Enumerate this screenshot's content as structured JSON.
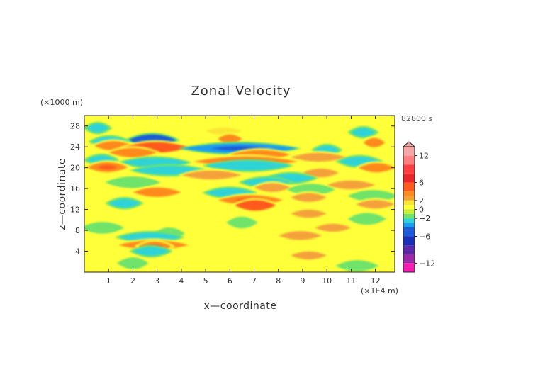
{
  "chart_data": {
    "type": "heatmap",
    "title": "Zonal Velocity",
    "xlabel": "x—coordinate",
    "ylabel": "z—coordinate",
    "x_unit": "(×1E4 m)",
    "y_unit": "(×1000 m)",
    "time_label": "82800 s",
    "xlim": [
      0,
      12.8
    ],
    "ylim": [
      0,
      30
    ],
    "x_ticks": [
      1,
      2,
      3,
      4,
      5,
      6,
      7,
      8,
      9,
      10,
      11,
      12
    ],
    "y_ticks": [
      4,
      8,
      12,
      16,
      20,
      24,
      28
    ],
    "colorbar": {
      "range": [
        -14,
        14
      ],
      "tick_values": [
        12,
        6,
        2,
        0,
        -2,
        -6,
        -12
      ],
      "tick_labels": [
        "12",
        "6",
        "2",
        "0",
        "−2",
        "−6",
        "−12"
      ],
      "levels": [
        {
          "min": 12,
          "max": 14,
          "color": "#f4a6a6"
        },
        {
          "min": 10,
          "max": 12,
          "color": "#ff7f7f"
        },
        {
          "min": 8,
          "max": 10,
          "color": "#ff4040"
        },
        {
          "min": 6,
          "max": 8,
          "color": "#e8262b"
        },
        {
          "min": 4,
          "max": 6,
          "color": "#ff5a1f"
        },
        {
          "min": 3,
          "max": 4,
          "color": "#ff8a1f"
        },
        {
          "min": 2,
          "max": 3,
          "color": "#f4a13a"
        },
        {
          "min": 1,
          "max": 2,
          "color": "#f9e633"
        },
        {
          "min": 0,
          "max": 1,
          "color": "#ffff3a"
        },
        {
          "min": -1,
          "max": 0,
          "color": "#c8f03a"
        },
        {
          "min": -2,
          "max": -1,
          "color": "#6fe36a"
        },
        {
          "min": -3,
          "max": -2,
          "color": "#2ed3d8"
        },
        {
          "min": -4,
          "max": -3,
          "color": "#1e9cf0"
        },
        {
          "min": -6,
          "max": -4,
          "color": "#1f5bd6"
        },
        {
          "min": -8,
          "max": -6,
          "color": "#1a2fb8"
        },
        {
          "min": -10,
          "max": -8,
          "color": "#5a2aa8"
        },
        {
          "min": -12,
          "max": -10,
          "color": "#9a2aa8"
        },
        {
          "min": -14,
          "max": -12,
          "color": "#f21fb0"
        }
      ]
    },
    "field_bands": [
      {
        "z": 27.6,
        "value": -2.5,
        "x_from": 0.1,
        "x_to": 1.0
      },
      {
        "z": 27.0,
        "value": 1.5,
        "x_from": 5.0,
        "x_to": 6.5
      },
      {
        "z": 26.8,
        "value": -2.5,
        "x_from": 11.0,
        "x_to": 12.0
      },
      {
        "z": 25.5,
        "value": 3.0,
        "x_from": 5.5,
        "x_to": 6.5
      },
      {
        "z": 25.3,
        "value": -4.5,
        "x_from": 1.8,
        "x_to": 3.8
      },
      {
        "z": 25.0,
        "value": -3.0,
        "x_from": 0.3,
        "x_to": 1.8
      },
      {
        "z": 24.8,
        "value": 3.0,
        "x_from": 11.5,
        "x_to": 12.4
      },
      {
        "z": 24.2,
        "value": 3.0,
        "x_from": 0.4,
        "x_to": 2.0
      },
      {
        "z": 23.9,
        "value": 4.0,
        "x_from": 1.6,
        "x_to": 4.3
      },
      {
        "z": 23.7,
        "value": -3.5,
        "x_from": 4.0,
        "x_to": 8.8
      },
      {
        "z": 23.4,
        "value": -2.5,
        "x_from": 9.5,
        "x_to": 10.5
      },
      {
        "z": 22.9,
        "value": 3.0,
        "x_from": 1.0,
        "x_to": 3.0
      },
      {
        "z": 22.5,
        "value": 3.0,
        "x_from": 6.0,
        "x_to": 8.5
      },
      {
        "z": 22.0,
        "value": 2.5,
        "x_from": 8.5,
        "x_to": 10.8
      },
      {
        "z": 21.5,
        "value": -2.5,
        "x_from": 0.1,
        "x_to": 1.3
      },
      {
        "z": 21.2,
        "value": 3.5,
        "x_from": 4.5,
        "x_to": 8.8
      },
      {
        "z": 21.0,
        "value": -2.5,
        "x_from": 1.5,
        "x_to": 4.3
      },
      {
        "z": 21.2,
        "value": -3.0,
        "x_from": 10.5,
        "x_to": 12.2
      },
      {
        "z": 20.4,
        "value": -3.0,
        "x_from": 5.0,
        "x_to": 8.5
      },
      {
        "z": 20.1,
        "value": 3.5,
        "x_from": 0.1,
        "x_to": 1.8
      },
      {
        "z": 20.0,
        "value": 3.0,
        "x_from": 11.3,
        "x_to": 12.8
      },
      {
        "z": 19.5,
        "value": -2.5,
        "x_from": 2.0,
        "x_to": 5.0
      },
      {
        "z": 19.0,
        "value": 2.5,
        "x_from": 9.0,
        "x_to": 10.5
      },
      {
        "z": 18.6,
        "value": 2.5,
        "x_from": 4.0,
        "x_to": 6.5
      },
      {
        "z": 18.0,
        "value": -2.5,
        "x_from": 7.5,
        "x_to": 9.5
      },
      {
        "z": 17.2,
        "value": -2.0,
        "x_from": 1.0,
        "x_to": 3.0
      },
      {
        "z": 17.2,
        "value": -2.5,
        "x_from": 6.5,
        "x_to": 8.5
      },
      {
        "z": 16.7,
        "value": 2.5,
        "x_from": 10.0,
        "x_to": 12.0
      },
      {
        "z": 16.2,
        "value": 2.5,
        "x_from": 7.0,
        "x_to": 8.5
      },
      {
        "z": 15.8,
        "value": -2.0,
        "x_from": 8.5,
        "x_to": 10.2
      },
      {
        "z": 15.3,
        "value": 3.0,
        "x_from": 2.0,
        "x_to": 4.0
      },
      {
        "z": 15.2,
        "value": -2.5,
        "x_from": 5.0,
        "x_to": 7.0
      },
      {
        "z": 14.6,
        "value": -2.0,
        "x_from": 11.0,
        "x_to": 12.8
      },
      {
        "z": 14.3,
        "value": 2.5,
        "x_from": 8.5,
        "x_to": 10.0
      },
      {
        "z": 13.8,
        "value": 3.5,
        "x_from": 5.5,
        "x_to": 8.2
      },
      {
        "z": 13.2,
        "value": -2.5,
        "x_from": 1.0,
        "x_to": 2.3
      },
      {
        "z": 13.0,
        "value": 2.5,
        "x_from": 11.2,
        "x_to": 12.8
      },
      {
        "z": 12.8,
        "value": 4.0,
        "x_from": 6.2,
        "x_to": 7.9
      },
      {
        "z": 11.2,
        "value": 2.0,
        "x_from": 8.5,
        "x_to": 10.0
      },
      {
        "z": 10.2,
        "value": -2.0,
        "x_from": 11.0,
        "x_to": 12.3
      },
      {
        "z": 9.5,
        "value": -2.0,
        "x_from": 6.0,
        "x_to": 7.0
      },
      {
        "z": 8.5,
        "value": 2.0,
        "x_from": 9.5,
        "x_to": 11.0
      },
      {
        "z": 8.5,
        "value": -2.0,
        "x_from": 0.0,
        "x_to": 1.5
      },
      {
        "z": 7.4,
        "value": -2.0,
        "x_from": 3.0,
        "x_to": 4.0
      },
      {
        "z": 7.0,
        "value": 2.5,
        "x_from": 8.0,
        "x_to": 9.8
      },
      {
        "z": 6.7,
        "value": -2.5,
        "x_from": 1.4,
        "x_to": 4.0
      },
      {
        "z": 5.2,
        "value": 3.0,
        "x_from": 1.4,
        "x_to": 4.3
      },
      {
        "z": 4.9,
        "value": 3.5,
        "x_from": 2.2,
        "x_to": 3.6
      },
      {
        "z": 4.0,
        "value": -2.5,
        "x_from": 2.0,
        "x_to": 3.5
      },
      {
        "z": 3.2,
        "value": 2.0,
        "x_from": 8.5,
        "x_to": 10.0
      },
      {
        "z": 1.7,
        "value": -2.0,
        "x_from": 1.5,
        "x_to": 2.5
      },
      {
        "z": 1.2,
        "value": -1.5,
        "x_from": 10.5,
        "x_to": 12.0
      }
    ]
  }
}
